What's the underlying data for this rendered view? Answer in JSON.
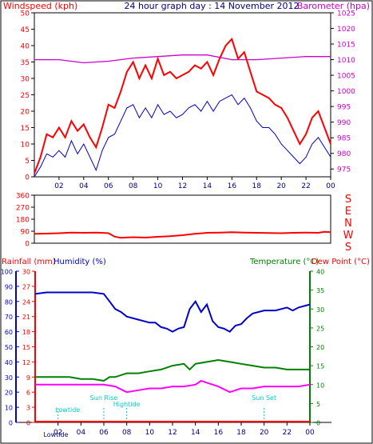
{
  "colors": {
    "background": "#ffffff",
    "frame": "#000000",
    "wind": "#ff0000",
    "gust": "#ff0000",
    "average": "#0000cc",
    "baro": "#cc00cc",
    "humidity": "#0000cc",
    "temp": "#008000",
    "dew": "#ff00ff",
    "rain": "#ff0000",
    "tide": "#00cccc"
  },
  "header": {
    "left": "Windspeed (kph)",
    "center": "24 hour graph day : 14 November 2012",
    "right": "Barometer (hpa)"
  },
  "mid": {
    "left": "Rainfall (mm)",
    "humidity": "Humidity (%)",
    "temp": "Temperature (°C)",
    "dew": "Dew Point (°C)"
  },
  "x_ticks": [
    "02",
    "04",
    "06",
    "08",
    "10",
    "12",
    "14",
    "16",
    "18",
    "20",
    "22",
    "00"
  ],
  "compass": [
    "S",
    "E",
    "N",
    "W",
    "S"
  ],
  "tides": [
    {
      "label": "Lowtide",
      "time": 2.0
    },
    {
      "label": "Sun Rise",
      "time": 6.0
    },
    {
      "label": "Hightide",
      "time": 8.0
    },
    {
      "label": "Sun Set",
      "time": 20.0
    }
  ],
  "bottom_label": "Lowtide",
  "chart_data": [
    {
      "type": "line",
      "title": "24 hour graph day : 14 November 2012",
      "ylabel": "Windspeed (kph)",
      "y2label": "Barometer (hpa)",
      "xlim": [
        0,
        24
      ],
      "ylim": [
        0,
        50
      ],
      "y_ticks": [
        0,
        5,
        10,
        15,
        20,
        25,
        30,
        35,
        40,
        45,
        50
      ],
      "y2lim": [
        972.5,
        1025
      ],
      "y2_ticks": [
        975,
        980,
        985,
        990,
        995,
        1000,
        1005,
        1010,
        1015,
        1020,
        1025
      ],
      "x_ticks": [
        "02",
        "04",
        "06",
        "08",
        "10",
        "12",
        "14",
        "16",
        "18",
        "20",
        "22",
        "00"
      ],
      "series": [
        {
          "key": "gust",
          "x": [
            0,
            0.5,
            1,
            1.5,
            2,
            2.5,
            3,
            3.5,
            4,
            4.5,
            5,
            5.5,
            6,
            6.5,
            7,
            7.5,
            8,
            8.5,
            9,
            9.5,
            10,
            10.5,
            11,
            11.5,
            12,
            12.5,
            13,
            13.5,
            14,
            14.5,
            15,
            15.5,
            16,
            16.5,
            17,
            17.5,
            18,
            18.5,
            19,
            19.5,
            20,
            20.5,
            21,
            21.5,
            22,
            22.5,
            23,
            23.5,
            24
          ],
          "values": [
            1,
            6,
            13,
            12,
            15,
            12,
            17,
            14,
            16,
            12,
            9,
            15,
            22,
            21,
            26,
            32,
            35,
            30,
            34,
            30,
            36,
            31,
            32,
            30,
            31,
            32,
            34,
            33,
            35,
            31,
            36,
            40,
            42,
            36,
            38,
            32,
            26,
            25,
            24,
            22,
            21,
            18,
            14,
            10,
            13,
            18,
            20,
            15,
            10
          ]
        },
        {
          "key": "average",
          "x": [
            0,
            0.5,
            1,
            1.5,
            2,
            2.5,
            3,
            3.5,
            4,
            4.5,
            5,
            5.5,
            6,
            6.5,
            7,
            7.5,
            8,
            8.5,
            9,
            9.5,
            10,
            10.5,
            11,
            11.5,
            12,
            12.5,
            13,
            13.5,
            14,
            14.5,
            15,
            15.5,
            16,
            16.5,
            17,
            17.5,
            18,
            18.5,
            19,
            19.5,
            20,
            20.5,
            21,
            21.5,
            22,
            22.5,
            23,
            23.5,
            24
          ],
          "values": [
            0,
            3,
            7,
            6,
            8,
            6,
            11,
            7,
            10,
            6,
            2,
            8,
            12,
            13,
            17,
            21,
            22,
            18,
            21,
            18,
            22,
            19,
            20,
            18,
            19,
            21,
            22,
            20,
            23,
            20,
            23,
            24,
            25,
            22,
            24,
            21,
            17,
            15,
            15,
            13,
            10,
            8,
            6,
            4,
            6,
            10,
            12,
            9,
            6
          ]
        },
        {
          "key": "baro",
          "axis": "y2",
          "x": [
            0,
            2,
            4,
            6,
            8,
            10,
            12,
            14,
            16,
            18,
            20,
            22,
            24
          ],
          "values": [
            1010,
            1010,
            1009,
            1009.5,
            1010.5,
            1011,
            1011.5,
            1011.5,
            1010,
            1010,
            1010.5,
            1011,
            1011
          ]
        }
      ]
    },
    {
      "type": "scatter",
      "ylabel": "Wind direction",
      "xlim": [
        0,
        24
      ],
      "ylim": [
        0,
        360
      ],
      "y_ticks": [
        0,
        90,
        180,
        270,
        360
      ],
      "series": [
        {
          "key": "direction",
          "x": [
            0,
            1,
            2,
            3,
            4,
            5,
            6,
            6.5,
            7,
            8,
            9,
            10,
            11,
            12,
            13,
            14,
            15,
            16,
            17,
            18,
            19,
            20,
            21,
            22,
            23,
            23.5,
            24
          ],
          "values": [
            70,
            72,
            75,
            80,
            78,
            80,
            75,
            50,
            40,
            45,
            42,
            48,
            52,
            60,
            70,
            78,
            80,
            82,
            80,
            78,
            76,
            75,
            78,
            80,
            78,
            85,
            82
          ]
        }
      ]
    },
    {
      "type": "line",
      "ylabel": "Humidity (%)",
      "y2label": "Temperature (°C)",
      "xlim": [
        0,
        24
      ],
      "humidity_ticks": [
        0,
        10,
        20,
        30,
        40,
        50,
        60,
        70,
        80,
        90,
        100
      ],
      "rain_ticks": [
        0,
        3,
        6,
        9,
        12,
        15,
        18,
        21,
        24,
        27,
        30
      ],
      "temp_ticks": [
        0,
        5,
        10,
        15,
        20,
        25,
        30,
        35,
        40
      ],
      "series": [
        {
          "key": "humidity",
          "axis": "humidity",
          "x": [
            0,
            1,
            2,
            3,
            4,
            5,
            6,
            6.5,
            7,
            7.5,
            8,
            9,
            10,
            10.5,
            11,
            11.5,
            12,
            12.5,
            13,
            13.5,
            14,
            14.5,
            15,
            15.5,
            16,
            16.5,
            17,
            17.5,
            18,
            18.5,
            19,
            20,
            21,
            22,
            22.5,
            23,
            24
          ],
          "values": [
            85,
            86,
            86,
            86,
            86,
            86,
            85,
            80,
            75,
            73,
            70,
            68,
            66,
            66,
            63,
            62,
            60,
            62,
            63,
            75,
            80,
            73,
            78,
            67,
            63,
            62,
            60,
            64,
            65,
            69,
            72,
            74,
            74,
            76,
            74,
            76,
            78
          ]
        },
        {
          "key": "temp",
          "axis": "temp",
          "x": [
            0,
            1,
            2,
            3,
            4,
            5,
            6,
            6.5,
            7,
            8,
            9,
            10,
            11,
            12,
            13,
            13.5,
            14,
            15,
            16,
            17,
            18,
            19,
            20,
            21,
            22,
            23,
            24
          ],
          "values": [
            12,
            12,
            12,
            12,
            11.5,
            11.5,
            11,
            12,
            12,
            13,
            13,
            13.5,
            14,
            15,
            15.5,
            14,
            15.5,
            16,
            16.5,
            16,
            15.5,
            15,
            14.5,
            14.5,
            14,
            14,
            14
          ]
        },
        {
          "key": "dew",
          "axis": "temp",
          "x": [
            0,
            1,
            2,
            3,
            4,
            5,
            6,
            7,
            8,
            9,
            10,
            11,
            12,
            13,
            14,
            14.5,
            15,
            16,
            17,
            18,
            19,
            20,
            21,
            22,
            23,
            24
          ],
          "values": [
            10,
            10,
            10,
            10,
            10,
            10,
            10,
            9.5,
            8,
            8.5,
            9,
            9,
            9.5,
            9.5,
            10,
            11,
            10.5,
            9.5,
            8,
            9,
            9,
            9.5,
            9.5,
            9.5,
            9.5,
            10
          ]
        },
        {
          "key": "rain",
          "axis": "rain",
          "x": [
            0,
            24
          ],
          "values": [
            0,
            0
          ]
        }
      ]
    }
  ]
}
